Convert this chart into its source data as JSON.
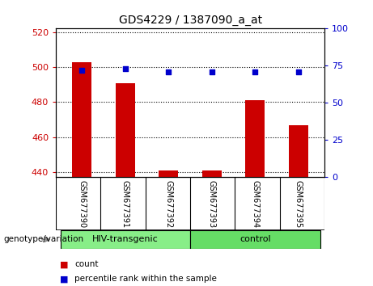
{
  "title": "GDS4229 / 1387090_a_at",
  "samples": [
    "GSM677390",
    "GSM677391",
    "GSM677392",
    "GSM677393",
    "GSM677394",
    "GSM677395"
  ],
  "counts": [
    503,
    491,
    441,
    441,
    481,
    467
  ],
  "percentiles": [
    72,
    73,
    71,
    71,
    71,
    71
  ],
  "ylim_left": [
    437,
    522
  ],
  "ylim_right": [
    0,
    100
  ],
  "yticks_left": [
    440,
    460,
    480,
    500,
    520
  ],
  "yticks_right": [
    0,
    25,
    50,
    75,
    100
  ],
  "bar_color": "#cc0000",
  "dot_color": "#0000cc",
  "bar_baseline": 437,
  "groups": [
    {
      "label": "HIV-transgenic",
      "indices": [
        0,
        1,
        2
      ],
      "color": "#88ee88"
    },
    {
      "label": "control",
      "indices": [
        3,
        4,
        5
      ],
      "color": "#66dd66"
    }
  ],
  "xlabel": "genotype/variation",
  "legend_count_label": "count",
  "legend_pct_label": "percentile rank within the sample",
  "tick_color_left": "#cc0000",
  "tick_color_right": "#0000cc",
  "background_color": "#d8d8d8",
  "plot_bg": "white"
}
